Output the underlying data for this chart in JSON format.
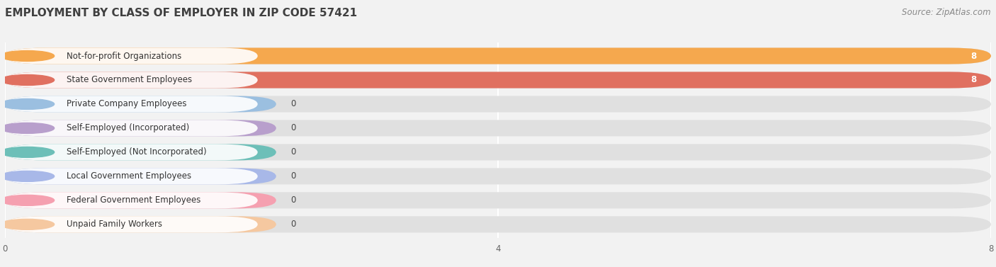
{
  "title": "EMPLOYMENT BY CLASS OF EMPLOYER IN ZIP CODE 57421",
  "source": "Source: ZipAtlas.com",
  "categories": [
    "Not-for-profit Organizations",
    "State Government Employees",
    "Private Company Employees",
    "Self-Employed (Incorporated)",
    "Self-Employed (Not Incorporated)",
    "Local Government Employees",
    "Federal Government Employees",
    "Unpaid Family Workers"
  ],
  "values": [
    8,
    8,
    0,
    0,
    0,
    0,
    0,
    0
  ],
  "bar_colors": [
    "#f5a84e",
    "#e07060",
    "#9bbfe0",
    "#b89fcc",
    "#6dbfb8",
    "#a8b8e8",
    "#f5a0b0",
    "#f5c8a0"
  ],
  "xlim": [
    0,
    8
  ],
  "xticks": [
    0,
    4,
    8
  ],
  "background_color": "#f2f2f2",
  "bar_bg_color": "#e0e0e0",
  "title_fontsize": 11,
  "source_fontsize": 8.5,
  "label_fontsize": 8.5,
  "value_fontsize": 8.5,
  "bar_height": 0.68,
  "zero_bar_width": 2.2
}
